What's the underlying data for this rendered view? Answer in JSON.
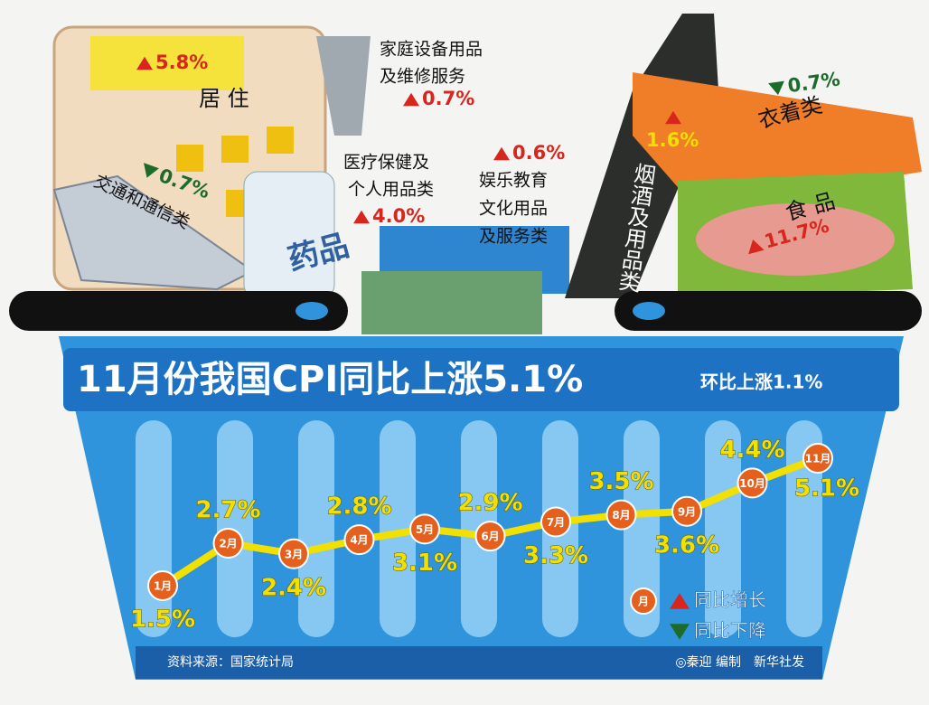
{
  "chart_data": {
    "type": "line",
    "title": "11月份我国CPI同比上涨5.1%",
    "subtitle": "环比上涨1.1%",
    "categories": [
      "1月",
      "2月",
      "3月",
      "4月",
      "5月",
      "6月",
      "7月",
      "8月",
      "9月",
      "10月",
      "11月"
    ],
    "values": [
      1.5,
      2.7,
      2.4,
      2.8,
      3.1,
      2.9,
      3.3,
      3.5,
      3.6,
      4.4,
      5.1
    ],
    "value_labels": [
      "1.5%",
      "2.7%",
      "2.4%",
      "2.8%",
      "3.1%",
      "2.9%",
      "3.3%",
      "3.5%",
      "3.6%",
      "4.4%",
      "5.1%"
    ],
    "color": "#f2e000",
    "marker_color": "#e4601c",
    "legend": {
      "marker": "月",
      "items": [
        {
          "label": "同比增长",
          "direction": "up"
        },
        {
          "label": "同比下降",
          "direction": "down"
        }
      ]
    },
    "direction_colors": {
      "up": "#d8261e",
      "down": "#1d6b2a"
    },
    "breakdown": [
      {
        "name": [
          "居 住"
        ],
        "value": 5.8,
        "label": "5.8%",
        "direction": "up"
      },
      {
        "name": [
          "家庭设备用品",
          "及维修服务"
        ],
        "value": 0.7,
        "label": "0.7%",
        "direction": "up"
      },
      {
        "name": [
          "医疗保健及",
          "个人用品类"
        ],
        "value": 4.0,
        "label": "4.0%",
        "direction": "up"
      },
      {
        "name": [
          "娱乐教育",
          "文化用品",
          "及服务类"
        ],
        "value": 0.6,
        "label": "0.6%",
        "direction": "up"
      },
      {
        "name": [
          "交通和通信类"
        ],
        "value": 0.7,
        "label": "0.7%",
        "direction": "down"
      },
      {
        "name": [
          "烟酒及用品类"
        ],
        "value": 1.6,
        "label": "1.6%",
        "direction": "up"
      },
      {
        "name": [
          "衣着类"
        ],
        "value": 0.7,
        "label": "0.7%",
        "direction": "down"
      },
      {
        "name": [
          "食 品"
        ],
        "value": 11.7,
        "label": "11.7%",
        "direction": "up"
      }
    ],
    "package_text": "药品",
    "source": "资料来源：国家统计局",
    "credit": "◎秦迎 编制　新华社发"
  }
}
